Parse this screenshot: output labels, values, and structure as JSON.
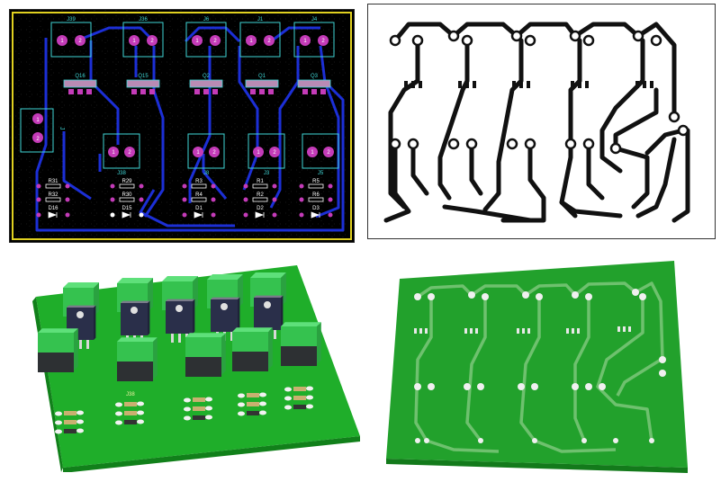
{
  "layout": {
    "connectors_top": [
      "J39",
      "J36",
      "J6",
      "J1",
      "J4"
    ],
    "pad_labels": [
      "1",
      "2"
    ],
    "transistors": [
      "Q16",
      "Q15",
      "Q2",
      "Q1",
      "Q3"
    ],
    "connector_left": "J",
    "connectors_mid": [
      "J38",
      "J8",
      "J3",
      "J5"
    ],
    "resistors_row1": [
      "R31",
      "R29",
      "R3",
      "R1",
      "R5"
    ],
    "resistors_row2": [
      "R32",
      "R30",
      "R4",
      "R2",
      "R6"
    ],
    "diodes": [
      "D16",
      "D15",
      "D1",
      "D2",
      "D3"
    ]
  },
  "bottom_left_board": {
    "silk_label": "J38"
  },
  "colors": {
    "layout_bg": "#000000",
    "trace_blue": "#1c2fd6",
    "pad_magenta": "#c43bb8",
    "silk_cyan": "#3fd6d6",
    "board_edge": "#e0d020",
    "board_green": "#1fae2a",
    "copper_trace": "#111111"
  }
}
